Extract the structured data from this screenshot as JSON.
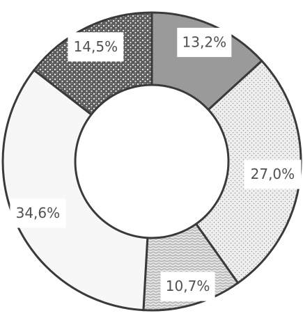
{
  "chart_data": {
    "type": "pie",
    "donut": true,
    "start_angle_deg": 0,
    "direction": "clockwise",
    "title": "",
    "slices": [
      {
        "value": 13.2,
        "label": "13,2%",
        "fill": "dark-gray"
      },
      {
        "value": 27.0,
        "label": "27,0%",
        "fill": "light-dotted"
      },
      {
        "value": 10.7,
        "label": "10,7%",
        "fill": "gray-weave"
      },
      {
        "value": 34.6,
        "label": "34,6%",
        "fill": "near-white"
      },
      {
        "value": 14.5,
        "label": "14,5%",
        "fill": "dark-speckle"
      }
    ],
    "colors": {
      "outline": "#3a3a3a",
      "dark_gray": "#9a9a9a",
      "light_dotted_bg": "#efefef",
      "gray_weave_bg": "#bdbdbd",
      "near_white": "#f7f7f7",
      "dark_speckle_bg": "#5a5a5a",
      "label_text": "#505050"
    }
  }
}
